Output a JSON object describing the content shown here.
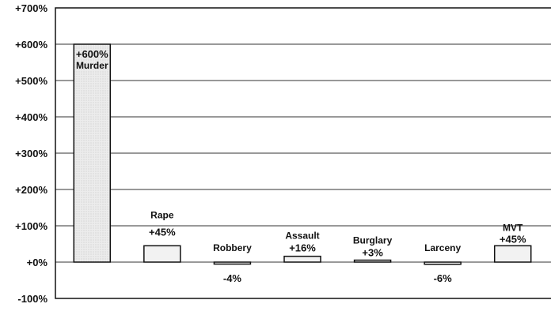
{
  "chart_data": {
    "type": "bar",
    "title": "",
    "xlabel": "",
    "ylabel": "",
    "ylim": [
      -100,
      700
    ],
    "yticks": [
      -100,
      0,
      100,
      200,
      300,
      400,
      500,
      600,
      700
    ],
    "ytick_labels": [
      "-100%",
      "+0%",
      "+100%",
      "+200%",
      "+300%",
      "+400%",
      "+500%",
      "+600%",
      "+700%"
    ],
    "grid": true,
    "categories": [
      "Murder",
      "Rape",
      "Robbery",
      "Assault",
      "Burglary",
      "Larceny",
      "MVT"
    ],
    "values": [
      600,
      45,
      -4,
      16,
      3,
      -6,
      45
    ],
    "value_labels": [
      "+600%",
      "+45%",
      "-4%",
      "+16%",
      "+3%",
      "-6%",
      "+45%"
    ],
    "colors": {
      "bar_fill": "#f2f2f2",
      "bar_fill_murder": "#e6e6e6",
      "bar_stroke": "#111111",
      "grid": "#333333"
    }
  }
}
